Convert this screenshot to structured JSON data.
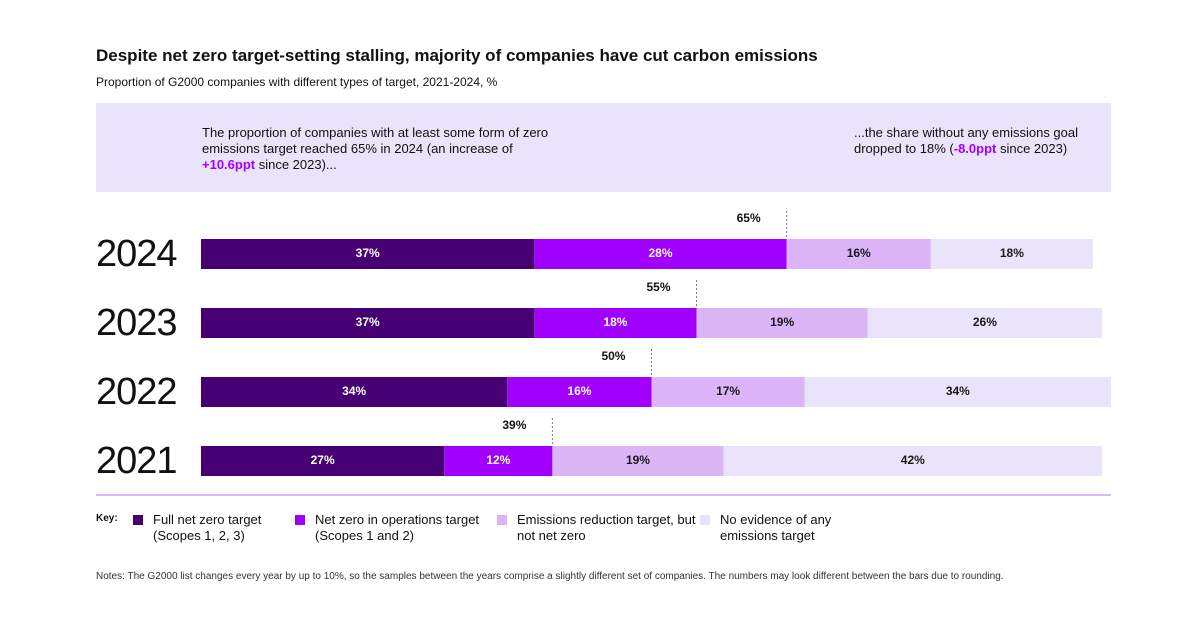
{
  "chart_data": {
    "type": "stacked-bar-horizontal",
    "title": "Despite net zero target-setting stalling, majority of companies have cut carbon emissions",
    "subtitle": "Proportion of G2000 companies with different types of target, 2021-2024, %",
    "callout_left": [
      "The proportion of companies with at least some form of zero emissions target reached 65% in 2024 (an increase of ",
      "+10.6ppt",
      " since 2023)..."
    ],
    "callout_right": [
      "...the share without any emissions goal dropped to 18% (",
      "-8.0ppt",
      " since 2023)"
    ],
    "categories": [
      "2024",
      "2023",
      "2022",
      "2021"
    ],
    "xlim": [
      0,
      101
    ],
    "series": [
      {
        "name": "Full net zero target (Scopes 1, 2, 3)",
        "color": "#460073",
        "label_color": "#ffffff",
        "values": [
          37,
          37,
          34,
          27
        ],
        "value_labels": [
          "37%",
          "37%",
          "34%",
          "27%"
        ]
      },
      {
        "name": "Net zero in operations target (Scopes 1 and 2)",
        "color": "#a100ff",
        "label_color": "#ffffff",
        "values": [
          28,
          18,
          16,
          12
        ],
        "value_labels": [
          "28%",
          "18%",
          "16%",
          "12%"
        ]
      },
      {
        "name": "Emissions reduction target, but not net zero",
        "color": "#dcb4f8",
        "label_color": "#1a1a1a",
        "values": [
          16,
          19,
          17,
          19
        ],
        "value_labels": [
          "16%",
          "19%",
          "17%",
          "19%"
        ]
      },
      {
        "name": "No evidence of any emissions target",
        "color": "#e9e3fb",
        "label_color": "#1a1a1a",
        "values": [
          18,
          26,
          34,
          42
        ],
        "value_labels": [
          "18%",
          "26%",
          "34%",
          "42%"
        ]
      }
    ],
    "totals": {
      "values": [
        65,
        55,
        50,
        39
      ],
      "value_labels": [
        "65%",
        "55%",
        "50%",
        "39%"
      ]
    },
    "legend_title": "Key:",
    "note": "Notes: The G2000 list changes every year by up to 10%, so the samples between the years comprise a slightly different set of companies. The numbers may look different between the bars due to rounding."
  }
}
